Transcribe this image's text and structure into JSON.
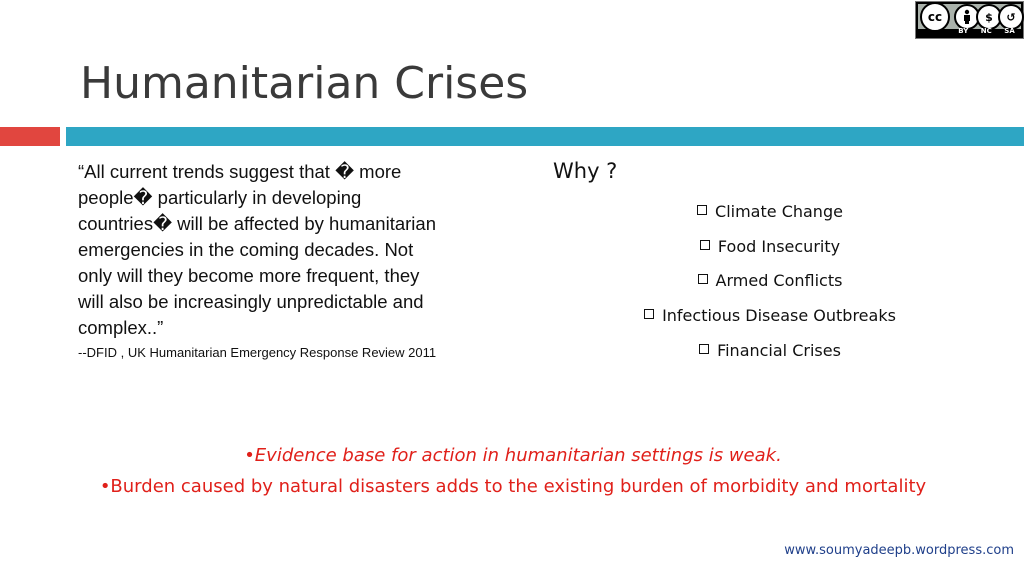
{
  "license_badge": {
    "icons": [
      "cc-icon",
      "by-icon",
      "nc-icon",
      "sa-icon"
    ],
    "labels": [
      "BY",
      "NC",
      "SA"
    ]
  },
  "slide": {
    "title": "Humanitarian Crises",
    "accent_red": "#e1463f",
    "accent_blue": "#2ea6c4",
    "quote_lines": [
      "“All current trends suggest that � more",
      "people� particularly in developing",
      "countries� will be affected by humanitarian",
      "emergencies in the coming decades. Not",
      "only will they become more frequent, they",
      "will also be increasingly unpredictable and",
      "complex..”"
    ],
    "attribution": "--DFID , UK Humanitarian Emergency Response Review 2011",
    "why": {
      "heading": "Why ?",
      "items": [
        "Climate Change",
        "Food Insecurity",
        "Armed Conflicts",
        "Infectious Disease Outbreaks",
        "Financial Crises"
      ]
    },
    "notes": [
      "•Evidence base for action in humanitarian settings is weak.",
      "•Burden caused by natural disasters adds to the existing burden of morbidity and mortality"
    ],
    "footer_url": "www.soumyadeepb.wordpress.com"
  }
}
